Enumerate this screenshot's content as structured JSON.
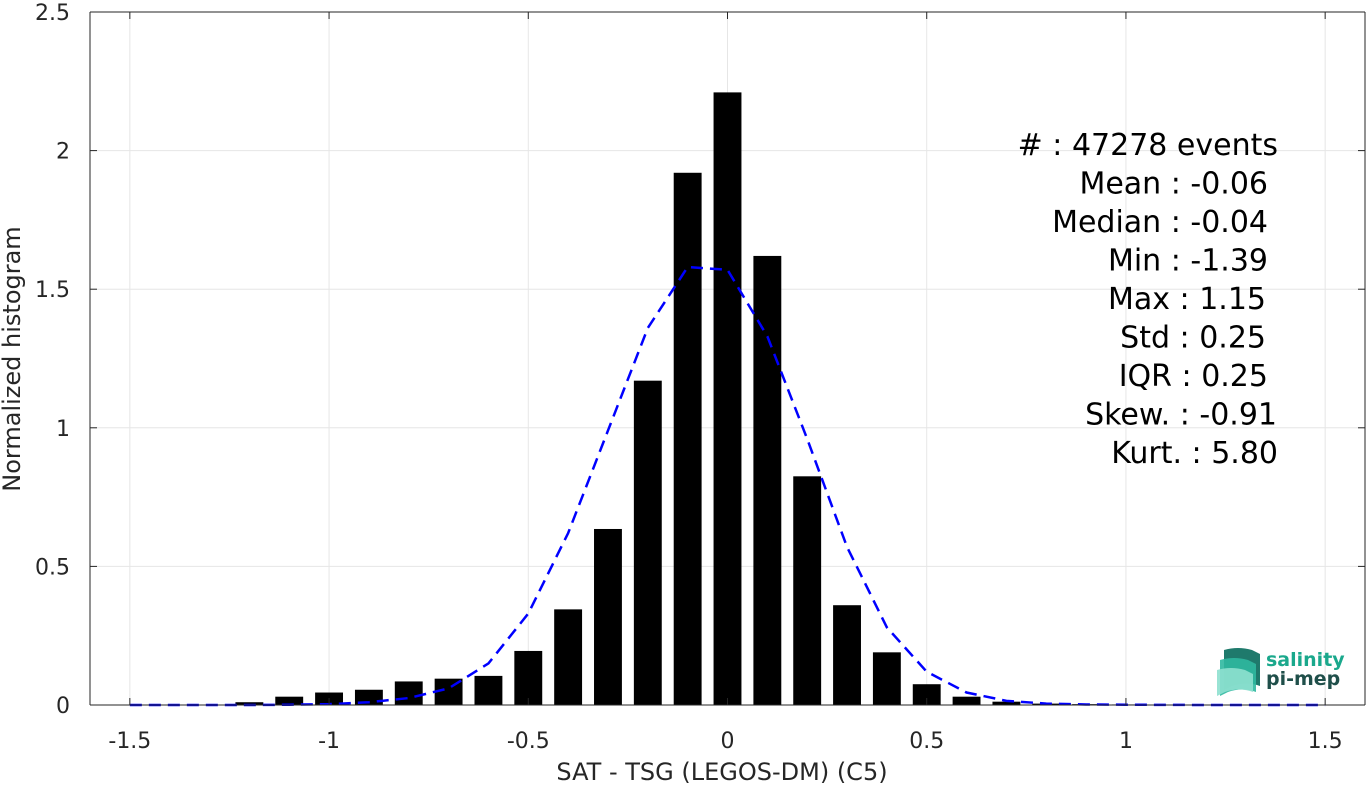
{
  "chart_data": {
    "type": "bar",
    "xlabel": "SAT - TSG (LEGOS-DM) (C5)",
    "ylabel": "Normalized histogram",
    "xlim": [
      -1.6,
      1.6
    ],
    "ylim": [
      0,
      2.5
    ],
    "xticks": [
      -1.5,
      -1,
      -0.5,
      0,
      0.5,
      1,
      1.5
    ],
    "xtick_labels": [
      "-1.5",
      "-1",
      "-0.5",
      "0",
      "0.5",
      "1",
      "1.5"
    ],
    "yticks": [
      0,
      0.5,
      1,
      1.5,
      2,
      2.5
    ],
    "ytick_labels": [
      "0",
      "0.5",
      "1",
      "1.5",
      "2",
      "2.5"
    ],
    "grid": true,
    "bar_width": 0.07,
    "bar_color": "#000000",
    "bars": {
      "x": [
        -1.2,
        -1.1,
        -1.0,
        -0.9,
        -0.8,
        -0.7,
        -0.6,
        -0.5,
        -0.4,
        -0.3,
        -0.2,
        -0.1,
        0.0,
        0.1,
        0.2,
        0.3,
        0.4,
        0.5,
        0.6,
        0.7,
        0.8,
        0.9,
        1.0
      ],
      "values": [
        0.01,
        0.03,
        0.045,
        0.055,
        0.085,
        0.095,
        0.105,
        0.195,
        0.345,
        0.635,
        1.17,
        1.92,
        2.21,
        1.62,
        0.825,
        0.36,
        0.19,
        0.075,
        0.03,
        0.012,
        0.005,
        0.003,
        0.002
      ]
    },
    "fit_curve": {
      "style": "dashed",
      "color": "#0000ff",
      "x": [
        -1.5,
        -1.3,
        -1.2,
        -1.1,
        -1.0,
        -0.9,
        -0.8,
        -0.7,
        -0.6,
        -0.5,
        -0.4,
        -0.3,
        -0.2,
        -0.1,
        0.0,
        0.1,
        0.2,
        0.3,
        0.4,
        0.5,
        0.6,
        0.7,
        0.8,
        0.9,
        1.0,
        1.2,
        1.5
      ],
      "values": [
        0,
        0,
        0,
        0.001,
        0.003,
        0.01,
        0.025,
        0.06,
        0.15,
        0.33,
        0.62,
        0.99,
        1.36,
        1.58,
        1.57,
        1.33,
        0.96,
        0.57,
        0.28,
        0.12,
        0.045,
        0.015,
        0.005,
        0.002,
        0.001,
        0,
        0
      ]
    },
    "annotations": [
      "#  : 47278 events",
      "Mean : -0.06",
      "Median : -0.04",
      "Min : -1.39",
      "Max : 1.15",
      "Std : 0.25",
      "IQR : 0.25",
      "Skew. : -0.91",
      "Kurt. : 5.80"
    ]
  },
  "logo": {
    "line1": "salinity",
    "line2": "pi-mep",
    "color_line1": "#1aa88c",
    "color_line2": "#1f4f4a",
    "icon_color": "#2fb8a0"
  }
}
